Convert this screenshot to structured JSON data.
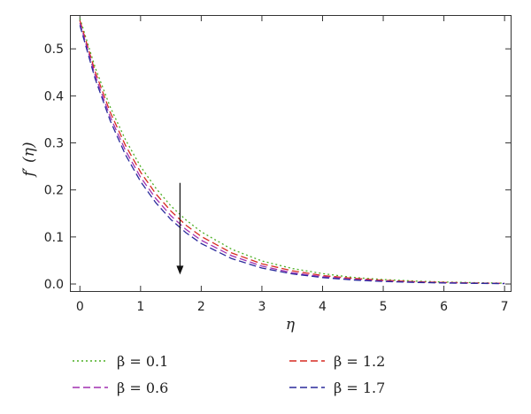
{
  "chart_data": {
    "type": "line",
    "title": "",
    "xlabel": "η",
    "ylabel": "f′ (η)",
    "xlim": [
      -0.15,
      7.1
    ],
    "ylim": [
      -0.015,
      0.57
    ],
    "xticks": [
      0,
      1,
      2,
      3,
      4,
      5,
      6,
      7
    ],
    "yticks": [
      0.0,
      0.1,
      0.2,
      0.3,
      0.4,
      0.5
    ],
    "xtick_labels": [
      "0",
      "1",
      "2",
      "3",
      "4",
      "5",
      "6",
      "7"
    ],
    "ytick_labels": [
      "0.0",
      "0.1",
      "0.2",
      "0.3",
      "0.4",
      "0.5"
    ],
    "grid": false,
    "legend_position": "bottom, below plot",
    "series": [
      {
        "name": "β = 0.1",
        "color": "#4caf24",
        "dash": "dotted",
        "x": [
          0,
          0.25,
          0.5,
          0.75,
          1,
          1.25,
          1.5,
          1.75,
          2,
          2.5,
          3,
          3.5,
          4,
          4.5,
          5,
          5.5,
          6,
          6.5,
          7
        ],
        "y": [
          0.565,
          0.461,
          0.376,
          0.307,
          0.25,
          0.204,
          0.166,
          0.136,
          0.111,
          0.074,
          0.049,
          0.033,
          0.022,
          0.014,
          0.0095,
          0.0063,
          0.0042,
          0.0028,
          0.0018
        ]
      },
      {
        "name": "β = 1.2",
        "color": "#d62a20",
        "dash": "dashed",
        "x": [
          0,
          0.25,
          0.5,
          0.75,
          1,
          1.25,
          1.5,
          1.75,
          2,
          2.5,
          3,
          3.5,
          4,
          4.5,
          5,
          5.5,
          6,
          6.5,
          7
        ],
        "y": [
          0.56,
          0.452,
          0.365,
          0.295,
          0.238,
          0.192,
          0.155,
          0.125,
          0.101,
          0.066,
          0.043,
          0.028,
          0.018,
          0.012,
          0.0077,
          0.005,
          0.0033,
          0.0021,
          0.0014
        ]
      },
      {
        "name": "β = 0.6",
        "color": "#a02fb0",
        "dash": "dashed",
        "x": [
          0,
          0.25,
          0.5,
          0.75,
          1,
          1.25,
          1.5,
          1.75,
          2,
          2.5,
          3,
          3.5,
          4,
          4.5,
          5,
          5.5,
          6,
          6.5,
          7
        ],
        "y": [
          0.555,
          0.444,
          0.355,
          0.284,
          0.227,
          0.182,
          0.145,
          0.116,
          0.093,
          0.06,
          0.038,
          0.024,
          0.0155,
          0.0099,
          0.0063,
          0.004,
          0.0026,
          0.0017,
          0.0011
        ]
      },
      {
        "name": "β = 1.7",
        "color": "#2a2a9c",
        "dash": "dashed",
        "x": [
          0,
          0.25,
          0.5,
          0.75,
          1,
          1.25,
          1.5,
          1.75,
          2,
          2.5,
          3,
          3.5,
          4,
          4.5,
          5,
          5.5,
          6,
          6.5,
          7
        ],
        "y": [
          0.55,
          0.437,
          0.347,
          0.275,
          0.218,
          0.173,
          0.137,
          0.109,
          0.086,
          0.054,
          0.034,
          0.0215,
          0.0135,
          0.0085,
          0.0054,
          0.0034,
          0.0021,
          0.0013,
          0.0008
        ]
      }
    ],
    "legend": [
      {
        "label": "β = 0.1",
        "color": "#4caf24",
        "dash": "dotted"
      },
      {
        "label": "β = 0.6",
        "color": "#a02fb0",
        "dash": "dashed"
      },
      {
        "label": "β = 1.2",
        "color": "#d62a20",
        "dash": "dashed"
      },
      {
        "label": "β = 1.7",
        "color": "#2a2a9c",
        "dash": "dashed"
      }
    ],
    "annotations": [
      {
        "type": "arrow",
        "direction": "down",
        "x": 1.65,
        "y_from": 0.215,
        "y_to": 0.02,
        "meaning": "increasing β"
      }
    ]
  }
}
